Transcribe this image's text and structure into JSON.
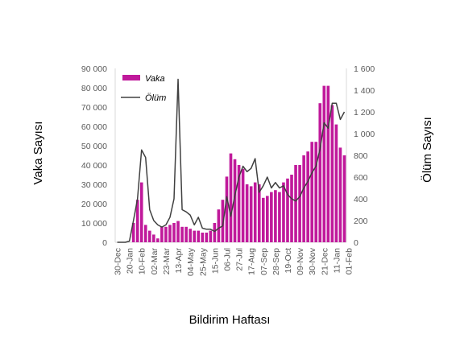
{
  "chart_data": {
    "type": "bar",
    "xlabel": "Bildirim Haftası",
    "ylabel": "Vaka Sayısı",
    "y2label": "Ölüm Sayısı",
    "ylim": [
      0,
      90000
    ],
    "y2lim": [
      0,
      1600
    ],
    "y_ticks": [
      0,
      10000,
      20000,
      30000,
      40000,
      50000,
      60000,
      70000,
      80000,
      90000
    ],
    "y_tick_labels": [
      "0",
      "10 000",
      "20 000",
      "30 000",
      "40 000",
      "50 000",
      "60 000",
      "70 000",
      "80 000",
      "90 000"
    ],
    "y2_ticks": [
      0,
      200,
      400,
      600,
      800,
      1000,
      1200,
      1400,
      1600
    ],
    "y2_tick_labels": [
      "0",
      "200",
      "400",
      "600",
      "800",
      "1 000",
      "1 200",
      "1 400",
      "1 600"
    ],
    "x_tick_labels": [
      "30-Dec",
      "20-Jan",
      "10-Feb",
      "02-Mar",
      "23-Mar",
      "13-Apr",
      "04-May",
      "25-May",
      "15-Jun",
      "06-Jul",
      "27-Jul",
      "17-Aug",
      "07-Sep",
      "28-Sep",
      "19-Oct",
      "09-Nov",
      "30-Nov",
      "21-Dec",
      "11-Jan",
      "01-Feb"
    ],
    "legend_position": "top-left",
    "colors": {
      "bar": "#c0199b",
      "line": "#404040"
    },
    "series": [
      {
        "name": "Vaka",
        "kind": "bar",
        "axis": "left",
        "values": [
          0,
          0,
          0,
          0,
          10000,
          22000,
          31000,
          9000,
          6000,
          4000,
          2000,
          8000,
          8000,
          9000,
          10000,
          11000,
          8000,
          8000,
          7000,
          6000,
          6000,
          5000,
          5000,
          6000,
          10000,
          17000,
          22000,
          34000,
          46000,
          43000,
          40000,
          38000,
          30000,
          29000,
          31000,
          30000,
          23000,
          24000,
          26000,
          27000,
          26000,
          31000,
          33000,
          35000,
          40000,
          40000,
          45000,
          47000,
          52000,
          52000,
          72000,
          81000,
          81000,
          71000,
          61000,
          49000,
          45000
        ]
      },
      {
        "name": "Ölüm",
        "kind": "line",
        "axis": "right",
        "values": [
          0,
          0,
          0,
          10,
          200,
          400,
          850,
          780,
          300,
          200,
          160,
          140,
          160,
          230,
          400,
          1500,
          300,
          280,
          250,
          160,
          230,
          130,
          120,
          120,
          100,
          130,
          150,
          420,
          240,
          430,
          600,
          700,
          650,
          680,
          770,
          460,
          520,
          600,
          500,
          550,
          500,
          520,
          440,
          400,
          380,
          420,
          500,
          560,
          640,
          700,
          860,
          1100,
          1050,
          1280,
          1280,
          1130,
          1200
        ]
      }
    ]
  }
}
